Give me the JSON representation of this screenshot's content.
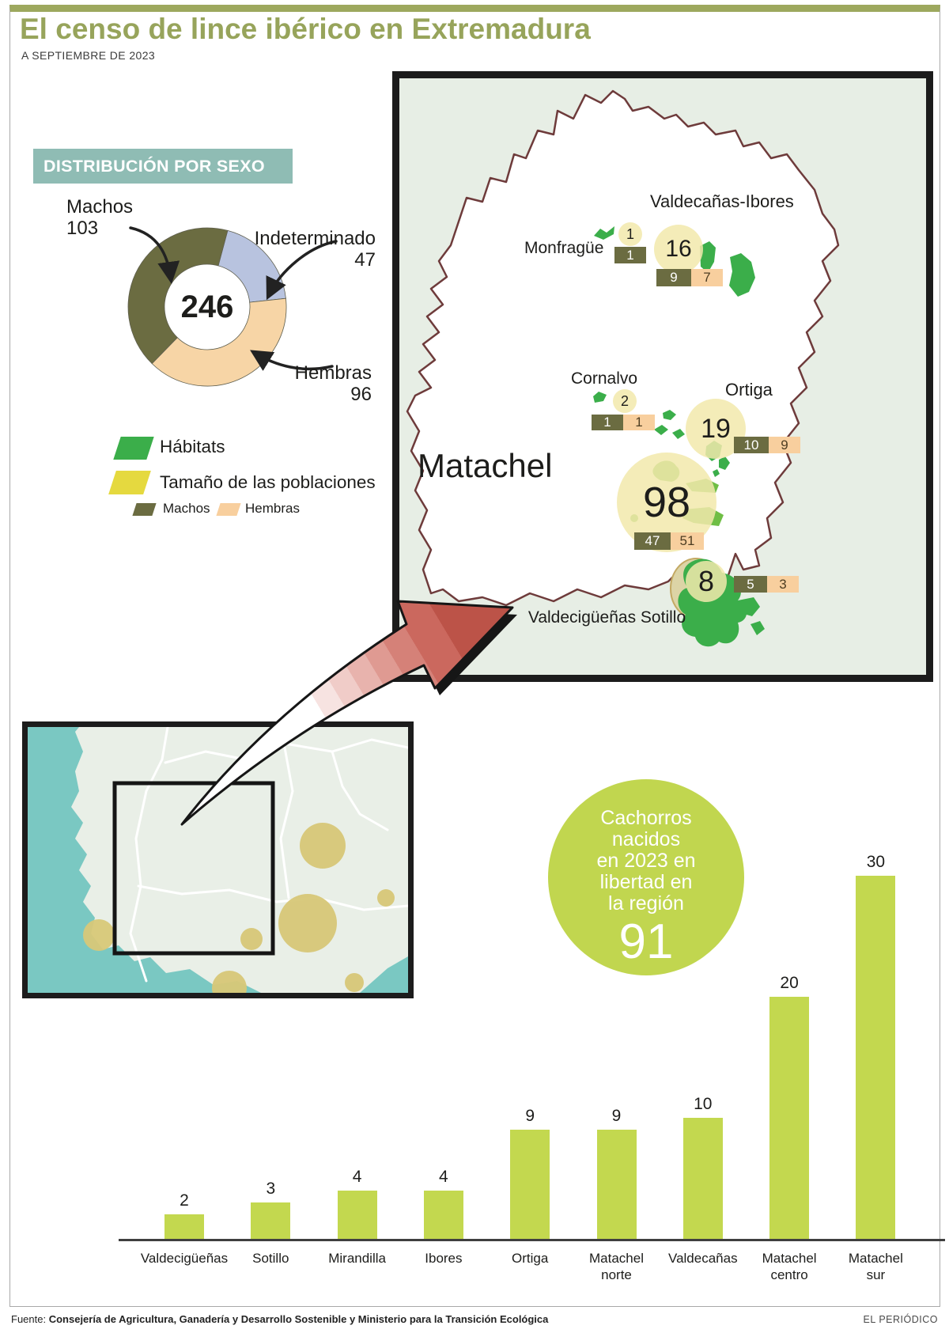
{
  "page": {
    "title": "El censo de lince ibérico en Extremadura",
    "subtitle": "A SEPTIEMBRE DE 2023",
    "source_prefix": "Fuente:",
    "source": "Consejería de Agricultura, Ganadería y Desarrollo Sostenible y Ministerio para la Transición Ecológica",
    "credit": "EL PERIÓDICO"
  },
  "cubs": {
    "lines": [
      "Cachorros",
      "nacidos",
      "en 2023 en",
      "libertad en",
      "la región"
    ],
    "total": 91
  },
  "chart_data": [
    {
      "type": "pie",
      "donut": true,
      "title": "DISTRIBUCIÓN POR SEXO",
      "center_total": 246,
      "slices": [
        {
          "label": "Machos",
          "value": 103,
          "color": "#6B6C41"
        },
        {
          "label": "Indeterminado",
          "value": 47,
          "color": "#B8C3DF"
        },
        {
          "label": "Hembras",
          "value": 96,
          "color": "#F7D5A6"
        }
      ]
    },
    {
      "type": "bar",
      "title": "Cachorros nacidos en 2023 en libertad en la región",
      "annotation_total": 91,
      "categories": [
        "Valdecigüeñas",
        "Sotillo",
        "Mirandilla",
        "Ibores",
        "Ortiga",
        "Matachel\nnorte",
        "Valdecañas",
        "Matachel\ncentro",
        "Matachel\nsur"
      ],
      "values": [
        2,
        3,
        4,
        4,
        9,
        9,
        10,
        20,
        30
      ],
      "bar_color": "#C3D84F",
      "ylim": [
        0,
        30
      ],
      "data_labels": true,
      "grid": false,
      "legend": "none"
    },
    {
      "type": "map",
      "region": "Extremadura",
      "legend": {
        "habitats": "Hábitats",
        "population_size": "Tamaño de las poblaciones",
        "machos": "Machos",
        "hembras": "Hembras",
        "habitat_color": "#3BAE4A",
        "population_color": "#E5D93F",
        "machos_color": "#6B6C41",
        "hembras_color": "#F8CF9E"
      },
      "populations": [
        {
          "name": "Monfragüe",
          "total": 1,
          "machos": 1,
          "hembras": null
        },
        {
          "name": "Valdecañas-Ibores",
          "total": 16,
          "machos": 9,
          "hembras": 7
        },
        {
          "name": "Cornalvo",
          "total": 2,
          "machos": 1,
          "hembras": 1
        },
        {
          "name": "Ortiga",
          "total": 19,
          "machos": 10,
          "hembras": 9
        },
        {
          "name": "Matachel",
          "total": 98,
          "machos": 47,
          "hembras": 51
        },
        {
          "name": "Valdecigüeñas Sotillo",
          "total": 8,
          "machos": 5,
          "hembras": 3
        }
      ]
    }
  ]
}
